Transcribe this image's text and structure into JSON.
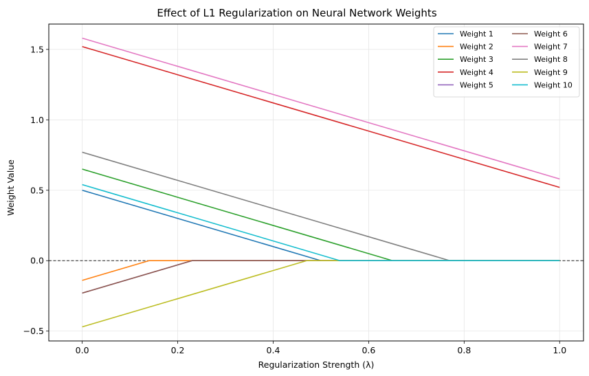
{
  "chart_data": {
    "type": "line",
    "title": "Effect of L1 Regularization on Neural Network Weights",
    "xlabel": "Regularization Strength (λ)",
    "ylabel": "Weight Value",
    "xlim": [
      -0.07,
      1.05
    ],
    "ylim": [
      -0.57,
      1.68
    ],
    "xticks": [
      0.0,
      0.2,
      0.4,
      0.6,
      0.8,
      1.0
    ],
    "xtick_labels": [
      "0.0",
      "0.2",
      "0.4",
      "0.6",
      "0.8",
      "1.0"
    ],
    "yticks": [
      -0.5,
      0.0,
      0.5,
      1.0,
      1.5
    ],
    "ytick_labels": [
      "−0.5",
      "0.0",
      "0.5",
      "1.0",
      "1.5"
    ],
    "grid": true,
    "legend_position": "top-right",
    "legend_columns": 2,
    "reference_line": {
      "y": 0,
      "style": "dashed",
      "color": "#000000"
    },
    "series": [
      {
        "name": "Weight 1",
        "color": "#1f77b4",
        "points": [
          [
            0.0,
            0.5
          ],
          [
            0.5,
            0.0
          ],
          [
            1.0,
            0.0
          ]
        ]
      },
      {
        "name": "Weight 2",
        "color": "#ff7f0e",
        "points": [
          [
            0.0,
            -0.14
          ],
          [
            0.14,
            0.0
          ],
          [
            1.0,
            0.0
          ]
        ]
      },
      {
        "name": "Weight 3",
        "color": "#2ca02c",
        "points": [
          [
            0.0,
            0.65
          ],
          [
            0.65,
            0.0
          ],
          [
            1.0,
            0.0
          ]
        ]
      },
      {
        "name": "Weight 4",
        "color": "#d62728",
        "points": [
          [
            0.0,
            1.52
          ],
          [
            1.0,
            0.52
          ]
        ]
      },
      {
        "name": "Weight 5",
        "color": "#9467bd",
        "points": [
          [
            0.0,
            -0.23
          ],
          [
            0.23,
            0.0
          ],
          [
            1.0,
            0.0
          ]
        ]
      },
      {
        "name": "Weight 6",
        "color": "#8c564b",
        "points": [
          [
            0.0,
            -0.23
          ],
          [
            0.23,
            0.0
          ],
          [
            1.0,
            0.0
          ]
        ]
      },
      {
        "name": "Weight 7",
        "color": "#e377c2",
        "points": [
          [
            0.0,
            1.58
          ],
          [
            1.0,
            0.58
          ]
        ]
      },
      {
        "name": "Weight 8",
        "color": "#7f7f7f",
        "points": [
          [
            0.0,
            0.77
          ],
          [
            0.77,
            0.0
          ],
          [
            1.0,
            0.0
          ]
        ]
      },
      {
        "name": "Weight 9",
        "color": "#bcbd22",
        "points": [
          [
            0.0,
            -0.47
          ],
          [
            0.47,
            0.0
          ],
          [
            1.0,
            0.0
          ]
        ]
      },
      {
        "name": "Weight 10",
        "color": "#17becf",
        "points": [
          [
            0.0,
            0.54
          ],
          [
            0.54,
            0.0
          ],
          [
            1.0,
            0.0
          ]
        ]
      }
    ]
  }
}
